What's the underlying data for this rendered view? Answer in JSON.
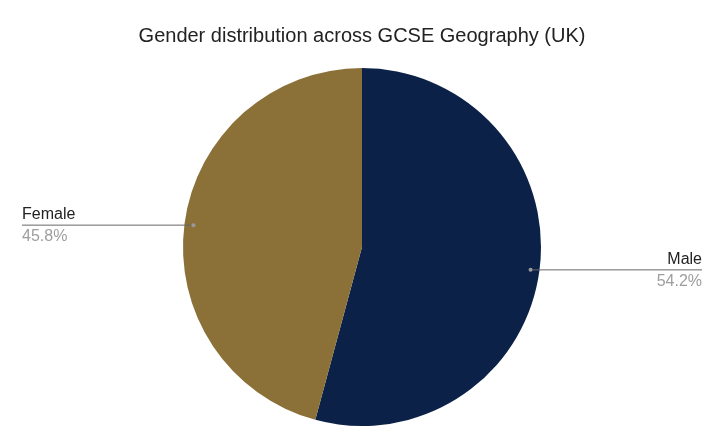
{
  "chart_data": {
    "type": "pie",
    "title": "Gender distribution across GCSE Geography (UK)",
    "categories": [
      "Male",
      "Female"
    ],
    "values": [
      54.2,
      45.8
    ],
    "value_labels": [
      "54.2%",
      "45.8%"
    ],
    "colors": [
      "#0b2147",
      "#8b7137"
    ],
    "data_labels": true
  }
}
